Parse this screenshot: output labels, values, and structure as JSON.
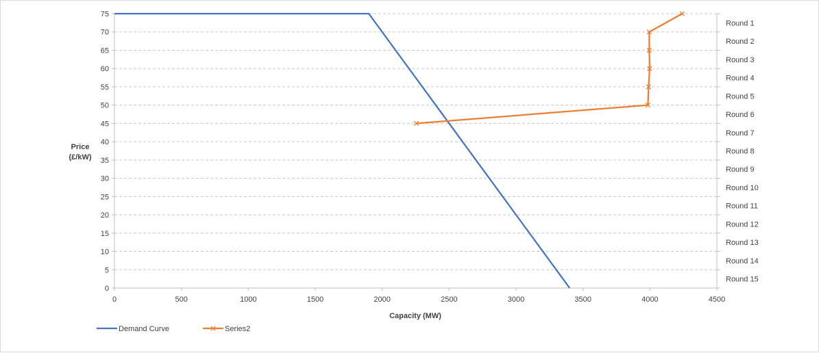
{
  "chart_data": {
    "type": "line",
    "xlabel": "Capacity (MW)",
    "ylabel_line1": "Price",
    "ylabel_line2": "(£/kW)",
    "xlim": [
      0,
      4500
    ],
    "ylim": [
      0,
      75
    ],
    "x_ticks": [
      0,
      500,
      1000,
      1500,
      2000,
      2500,
      3000,
      3500,
      4000,
      4500
    ],
    "y_ticks": [
      0,
      5,
      10,
      15,
      20,
      25,
      30,
      35,
      40,
      45,
      50,
      55,
      60,
      65,
      70,
      75
    ],
    "secondary_y_labels": [
      "Round 1",
      "Round 2",
      "Round 3",
      "Round 4",
      "Round 5",
      "Round 6",
      "Round 7",
      "Round 8",
      "Round 9",
      "Round 10",
      "Round 11",
      "Round 12",
      "Round 13",
      "Round 14",
      "Round 15"
    ],
    "grid": "horizontal dashed",
    "legend_position": "bottom-left",
    "series": [
      {
        "name": "Demand Curve",
        "color": "#4472c4",
        "marker": "none",
        "points": [
          [
            0,
            75
          ],
          [
            1900,
            75
          ],
          [
            3400,
            0
          ]
        ]
      },
      {
        "name": "Series2",
        "color": "#ed7d31",
        "marker": "x",
        "points": [
          [
            4240,
            75
          ],
          [
            3995,
            70
          ],
          [
            3995,
            65
          ],
          [
            3998,
            60
          ],
          [
            3990,
            55
          ],
          [
            3985,
            50
          ],
          [
            2255,
            45
          ]
        ]
      }
    ]
  }
}
